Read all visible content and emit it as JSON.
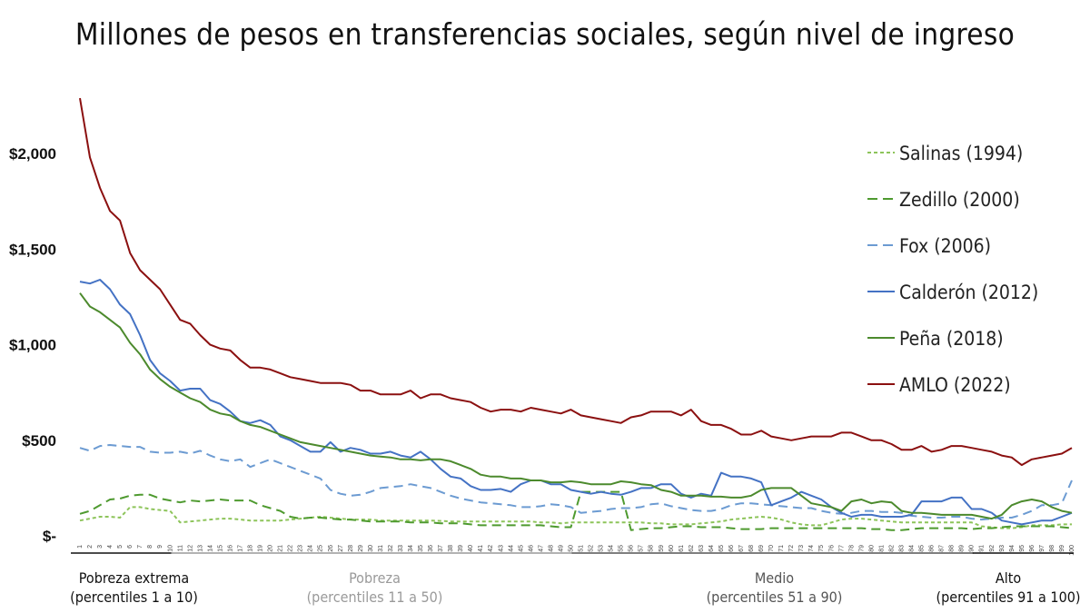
{
  "chart_data": {
    "type": "line",
    "title": "Millones de pesos en transferencias sociales, según nivel de ingreso",
    "ylim": [
      0,
      2300
    ],
    "yticks": [
      {
        "value": 0,
        "label": "$-"
      },
      {
        "value": 500,
        "label": "$500"
      },
      {
        "value": 1000,
        "label": "$1,000"
      },
      {
        "value": 1500,
        "label": "$1,500"
      },
      {
        "value": 2000,
        "label": "$2,000"
      }
    ],
    "x": [
      1,
      2,
      3,
      4,
      5,
      6,
      7,
      8,
      9,
      10,
      11,
      12,
      13,
      14,
      15,
      16,
      17,
      18,
      19,
      20,
      21,
      22,
      23,
      24,
      25,
      26,
      27,
      28,
      29,
      30,
      31,
      32,
      33,
      34,
      35,
      36,
      37,
      38,
      39,
      40,
      41,
      42,
      43,
      44,
      45,
      46,
      47,
      48,
      49,
      50,
      51,
      52,
      53,
      54,
      55,
      56,
      57,
      58,
      59,
      60,
      61,
      62,
      63,
      64,
      65,
      66,
      67,
      68,
      69,
      70,
      71,
      72,
      73,
      74,
      75,
      76,
      77,
      78,
      79,
      80,
      81,
      82,
      83,
      84,
      85,
      86,
      87,
      88,
      89,
      90,
      91,
      92,
      93,
      94,
      95,
      96,
      97,
      98,
      99,
      100
    ],
    "legend_position": "right",
    "grid": false,
    "series": [
      {
        "name": "Salinas (1994)",
        "color": "#8dc45a",
        "dash": "dotted",
        "values": [
          80,
          90,
          100,
          100,
          95,
          150,
          150,
          140,
          135,
          130,
          70,
          75,
          80,
          85,
          90,
          90,
          85,
          80,
          80,
          80,
          80,
          85,
          90,
          95,
          100,
          95,
          90,
          85,
          85,
          85,
          80,
          80,
          80,
          80,
          80,
          80,
          78,
          75,
          75,
          75,
          75,
          75,
          75,
          75,
          75,
          75,
          70,
          70,
          65,
          70,
          70,
          70,
          70,
          70,
          70,
          70,
          70,
          65,
          65,
          60,
          60,
          60,
          65,
          70,
          75,
          85,
          90,
          95,
          100,
          95,
          85,
          70,
          60,
          55,
          55,
          70,
          85,
          90,
          90,
          85,
          80,
          75,
          70,
          70,
          70,
          70,
          70,
          70,
          70,
          70,
          50,
          45,
          40,
          40,
          45,
          55,
          55,
          55,
          60,
          60
        ]
      },
      {
        "name": "Zedillo (2000)",
        "color": "#4e9a2f",
        "dash": "dashed",
        "values": [
          115,
          130,
          160,
          190,
          195,
          210,
          215,
          215,
          195,
          185,
          175,
          185,
          180,
          185,
          190,
          185,
          185,
          185,
          160,
          145,
          130,
          100,
          90,
          95,
          95,
          90,
          85,
          85,
          80,
          75,
          75,
          75,
          75,
          70,
          70,
          70,
          65,
          65,
          65,
          60,
          55,
          55,
          55,
          55,
          55,
          55,
          55,
          50,
          45,
          45,
          230,
          230,
          230,
          230,
          230,
          30,
          35,
          40,
          40,
          45,
          50,
          50,
          45,
          45,
          45,
          40,
          35,
          35,
          35,
          40,
          40,
          40,
          40,
          40,
          40,
          40,
          40,
          40,
          40,
          35,
          35,
          30,
          30,
          35,
          40,
          40,
          40,
          40,
          40,
          35,
          40,
          40,
          45,
          50,
          50,
          50,
          50,
          50,
          45,
          40
        ]
      },
      {
        "name": "Fox (2006)",
        "color": "#6c9bd2",
        "dash": "dashed",
        "values": [
          460,
          445,
          470,
          475,
          470,
          465,
          465,
          440,
          435,
          435,
          440,
          430,
          445,
          420,
          400,
          390,
          400,
          360,
          380,
          400,
          380,
          360,
          340,
          320,
          300,
          240,
          220,
          210,
          215,
          230,
          250,
          255,
          260,
          270,
          260,
          250,
          230,
          210,
          195,
          185,
          175,
          170,
          165,
          160,
          150,
          150,
          155,
          165,
          160,
          150,
          120,
          125,
          130,
          140,
          145,
          145,
          150,
          165,
          170,
          155,
          145,
          135,
          130,
          130,
          140,
          160,
          170,
          170,
          165,
          160,
          155,
          150,
          145,
          145,
          130,
          120,
          115,
          120,
          130,
          130,
          125,
          125,
          120,
          105,
          100,
          95,
          95,
          100,
          100,
          90,
          85,
          90,
          95,
          95,
          110,
          130,
          160,
          160,
          170,
          290
        ]
      },
      {
        "name": "Calderón (2012)",
        "color": "#4472c4",
        "dash": "solid",
        "values": [
          1330,
          1320,
          1340,
          1290,
          1210,
          1160,
          1050,
          920,
          850,
          810,
          760,
          770,
          770,
          710,
          690,
          650,
          600,
          590,
          605,
          580,
          520,
          500,
          470,
          440,
          440,
          490,
          440,
          460,
          450,
          430,
          430,
          440,
          420,
          410,
          440,
          400,
          350,
          310,
          300,
          260,
          240,
          240,
          245,
          230,
          270,
          290,
          290,
          270,
          270,
          240,
          230,
          220,
          230,
          220,
          215,
          230,
          250,
          250,
          270,
          270,
          220,
          200,
          220,
          210,
          330,
          310,
          310,
          300,
          280,
          160,
          180,
          200,
          230,
          210,
          190,
          150,
          120,
          100,
          110,
          110,
          100,
          100,
          100,
          110,
          180,
          180,
          180,
          200,
          200,
          140,
          140,
          120,
          80,
          70,
          60,
          70,
          80,
          80,
          100,
          120
        ]
      },
      {
        "name": "Peña (2018)",
        "color": "#4c8a2d",
        "dash": "solid",
        "values": [
          1270,
          1200,
          1170,
          1130,
          1090,
          1010,
          950,
          870,
          820,
          780,
          750,
          720,
          700,
          660,
          640,
          630,
          600,
          580,
          570,
          550,
          530,
          510,
          490,
          480,
          470,
          460,
          450,
          440,
          430,
          420,
          415,
          410,
          400,
          400,
          395,
          400,
          400,
          390,
          370,
          350,
          320,
          310,
          310,
          300,
          300,
          290,
          290,
          280,
          280,
          285,
          280,
          270,
          270,
          270,
          285,
          280,
          270,
          265,
          240,
          230,
          210,
          210,
          210,
          205,
          205,
          200,
          200,
          210,
          240,
          250,
          250,
          250,
          210,
          170,
          160,
          150,
          130,
          180,
          190,
          170,
          180,
          175,
          130,
          120,
          120,
          115,
          110,
          110,
          110,
          110,
          100,
          90,
          110,
          160,
          180,
          190,
          180,
          150,
          130,
          120
        ]
      },
      {
        "name": "AMLO (2022)",
        "color": "#8b1010",
        "dash": "solid",
        "values": [
          2290,
          1980,
          1820,
          1700,
          1650,
          1480,
          1390,
          1340,
          1290,
          1210,
          1130,
          1110,
          1050,
          1000,
          980,
          970,
          920,
          880,
          880,
          870,
          850,
          830,
          820,
          810,
          800,
          800,
          800,
          790,
          760,
          760,
          740,
          740,
          740,
          760,
          720,
          740,
          740,
          720,
          710,
          700,
          670,
          650,
          660,
          660,
          650,
          670,
          660,
          650,
          640,
          660,
          630,
          620,
          610,
          600,
          590,
          620,
          630,
          650,
          650,
          650,
          630,
          660,
          600,
          580,
          580,
          560,
          530,
          530,
          550,
          520,
          510,
          500,
          510,
          520,
          520,
          520,
          540,
          540,
          520,
          500,
          500,
          480,
          450,
          450,
          470,
          440,
          450,
          470,
          470,
          460,
          450,
          440,
          420,
          410,
          370,
          400,
          410,
          420,
          430,
          460
        ]
      }
    ]
  },
  "groups": [
    {
      "line1": "Pobreza extrema",
      "line2": "(percentiles 1 a 10)",
      "color": "#111111",
      "underline": "#111111"
    },
    {
      "line1": "Pobreza",
      "line2": "(percentiles 11 a 50)",
      "color": "#9a9a9a",
      "underline": "#9a9a9a"
    },
    {
      "line1": "Medio",
      "line2": "(percentiles 51 a 90)",
      "color": "#555555",
      "underline": "#555555"
    },
    {
      "line1": "Alto",
      "line2": "(percentiles 91 a 100)",
      "color": "#111111",
      "underline": "#111111"
    }
  ]
}
